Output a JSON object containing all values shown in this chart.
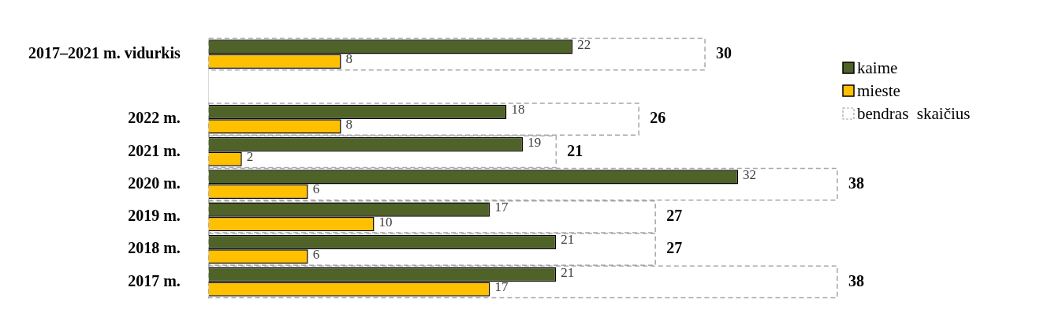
{
  "chart_data": {
    "type": "bar",
    "orientation": "horizontal",
    "categories": [
      "2017–2021 m. vidurkis",
      null,
      "2022 m.",
      "2021 m.",
      "2020 m.",
      "2019 m.",
      "2018 m.",
      "2017 m."
    ],
    "series": [
      {
        "name": "kaime",
        "color": "#4f6228",
        "values": [
          22,
          null,
          18,
          19,
          32,
          17,
          21,
          21
        ]
      },
      {
        "name": "mieste",
        "color": "#ffc000",
        "values": [
          8,
          null,
          8,
          2,
          6,
          10,
          6,
          17
        ]
      },
      {
        "name": "bendras  skaičius",
        "color": "#a6a6a6",
        "line_style": "dashed",
        "values": [
          30,
          null,
          26,
          21,
          38,
          27,
          27,
          38
        ]
      }
    ],
    "data_labels": true,
    "legend": "top right"
  }
}
